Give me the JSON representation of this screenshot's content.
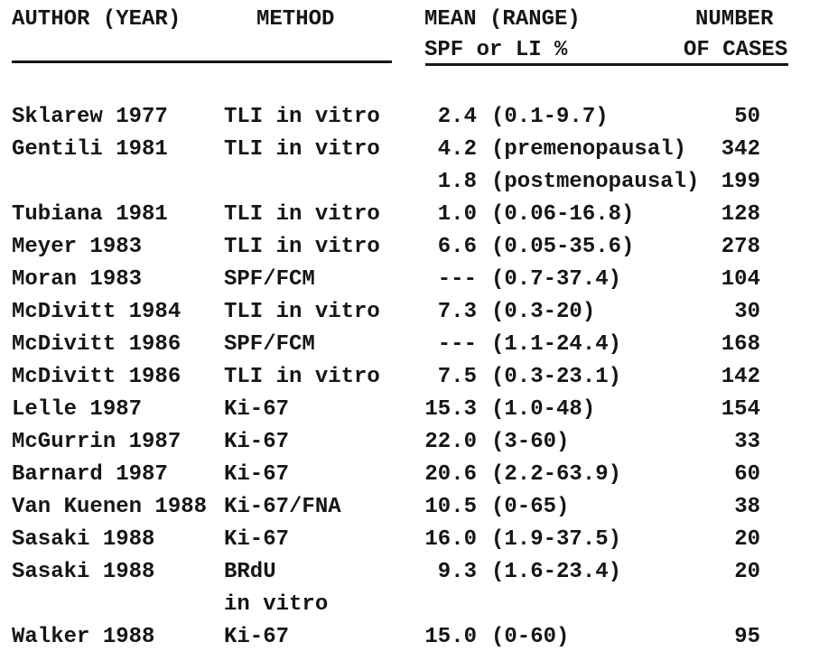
{
  "colors": {
    "ink": "#161616",
    "paper": "#ffffff"
  },
  "table": {
    "header": {
      "author_year": "AUTHOR (YEAR)",
      "method": "METHOD",
      "mean_range": "MEAN (RANGE)",
      "number": "NUMBER",
      "spf_or_li": "SPF or LI %",
      "of_cases": "OF CASES"
    },
    "rows": [
      {
        "author": "Sklarew 1977",
        "method": "TLI in vitro",
        "mean": "2.4",
        "range": "(0.1-9.7)",
        "cases": "50"
      },
      {
        "author": "Gentili 1981",
        "method": "TLI in vitro",
        "mean": "4.2",
        "range": "(premenopausal)",
        "cases": "342"
      },
      {
        "author": "",
        "method": "",
        "mean": "1.8",
        "range": "(postmenopausal)",
        "cases": "199"
      },
      {
        "author": "Tubiana 1981",
        "method": "TLI in vitro",
        "mean": "1.0",
        "range": "(0.06-16.8)",
        "cases": "128"
      },
      {
        "author": "Meyer 1983",
        "method": "TLI in vitro",
        "mean": "6.6",
        "range": "(0.05-35.6)",
        "cases": "278"
      },
      {
        "author": "Moran 1983",
        "method": "SPF/FCM",
        "mean": "---",
        "range": "(0.7-37.4)",
        "cases": "104"
      },
      {
        "author": "McDivitt 1984",
        "method": "TLI in vitro",
        "mean": "7.3",
        "range": "(0.3-20)",
        "cases": "30"
      },
      {
        "author": "McDivitt 1986",
        "method": "SPF/FCM",
        "mean": "---",
        "range": "(1.1-24.4)",
        "cases": "168"
      },
      {
        "author": "McDivitt 1986",
        "method": "TLI in vitro",
        "mean": "7.5",
        "range": "(0.3-23.1)",
        "cases": "142"
      },
      {
        "author": "Lelle 1987",
        "method": "Ki-67",
        "mean": "15.3",
        "range": "(1.0-48)",
        "cases": "154"
      },
      {
        "author": "McGurrin 1987",
        "method": "Ki-67",
        "mean": "22.0",
        "range": "(3-60)",
        "cases": "33"
      },
      {
        "author": "Barnard 1987",
        "method": "Ki-67",
        "mean": "20.6",
        "range": "(2.2-63.9)",
        "cases": "60"
      },
      {
        "author": "Van Kuenen 1988",
        "method": "Ki-67/FNA",
        "mean": "10.5",
        "range": "(0-65)",
        "cases": "38"
      },
      {
        "author": "Sasaki 1988",
        "method": "Ki-67",
        "mean": "16.0",
        "range": "(1.9-37.5)",
        "cases": "20"
      },
      {
        "author": "Sasaki 1988",
        "method": "BRdU",
        "mean": "9.3",
        "range": "(1.6-23.4)",
        "cases": "20"
      },
      {
        "author": "",
        "method": "in vitro",
        "mean": "",
        "range": "",
        "cases": ""
      },
      {
        "author": "Walker 1988",
        "method": "Ki-67",
        "mean": "15.0",
        "range": "(0-60)",
        "cases": "95"
      }
    ]
  }
}
